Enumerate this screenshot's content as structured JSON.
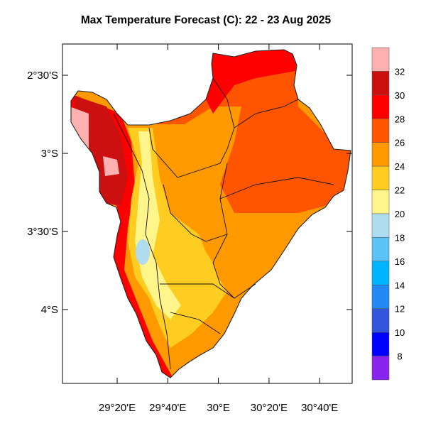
{
  "title": "Max Temperature Forecast (C): 22 - 23 Aug 2025",
  "map": {
    "lat_ticks": [
      "2°30'S",
      "3°S",
      "3°30'S",
      "4°S"
    ],
    "lon_ticks": [
      "29°20'E",
      "29°40'E",
      "30°E",
      "30°20'E",
      "30°40'E"
    ]
  },
  "colorbar": {
    "labels": [
      "32",
      "30",
      "28",
      "26",
      "24",
      "22",
      "20",
      "18",
      "16",
      "14",
      "12",
      "10",
      "8"
    ],
    "colors": [
      "#FFB0B0",
      "#CC1010",
      "#FF0000",
      "#FF5500",
      "#FF9900",
      "#FFCC22",
      "#FFF58A",
      "#B0DCF0",
      "#5BC3F5",
      "#00B4FF",
      "#2288F5",
      "#3355DD",
      "#0000FF",
      "#8822EE"
    ]
  }
}
